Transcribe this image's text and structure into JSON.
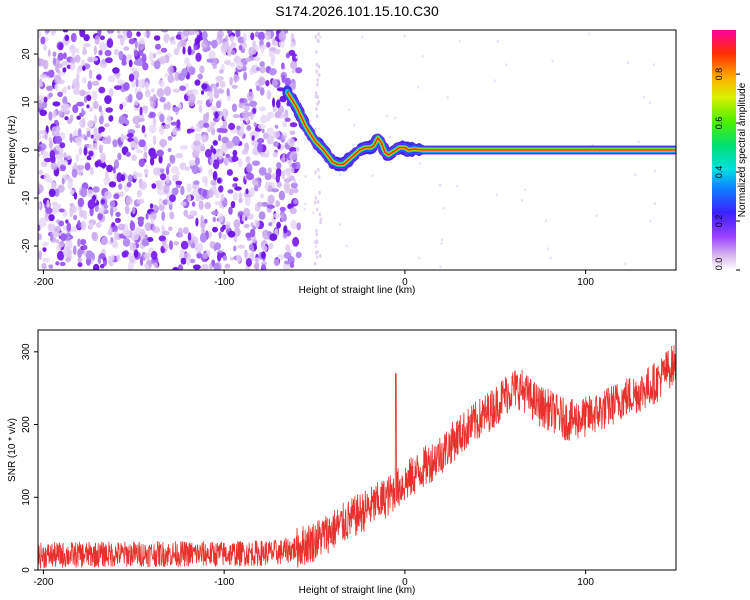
{
  "figure": {
    "title": "S174.2026.101.15.10.C30"
  },
  "chart_data": [
    {
      "type": "heatmap",
      "name": "spectrogram",
      "title": "S174.2026.101.15.10.C30",
      "xlabel": "Height of straight line (km)",
      "ylabel": "Frequency (Hz)",
      "xlim": [
        -203,
        150
      ],
      "ylim": [
        -25,
        25
      ],
      "xticks": [
        -200,
        -100,
        0,
        100
      ],
      "yticks": [
        -20,
        -10,
        0,
        10,
        20
      ],
      "noise_region_km": [
        -203,
        -62
      ],
      "signal_track": {
        "x": [
          -65,
          -60,
          -55,
          -50,
          -45,
          -42,
          -40,
          -37,
          -34,
          -31,
          -28,
          -25,
          -22,
          -19,
          -17,
          -15,
          -13,
          -11,
          -9,
          -7,
          -5,
          -3,
          0,
          2,
          5,
          10,
          20,
          60,
          100,
          150
        ],
        "y": [
          12,
          9,
          5,
          2,
          0,
          -1.5,
          -2.5,
          -3,
          -3,
          -2,
          -1,
          0,
          0.5,
          0.5,
          1,
          2.5,
          1.5,
          -0.5,
          -1,
          -0.5,
          0,
          0.5,
          0.5,
          0,
          0.2,
          0,
          0,
          0,
          0,
          0
        ]
      },
      "colorbar": {
        "label": "Normalized spectral amplitude",
        "min": 0.0,
        "max": 0.98,
        "ticks": [
          0.0,
          0.2,
          0.4,
          0.6,
          0.8
        ]
      }
    },
    {
      "type": "line",
      "name": "snr",
      "xlabel": "Height of straight line (km)",
      "ylabel": "SNR (10 * v/v)",
      "xlim": [
        -203,
        150
      ],
      "ylim": [
        0,
        330
      ],
      "xticks": [
        -200,
        -100,
        0,
        100
      ],
      "yticks": [
        0,
        100,
        200,
        300
      ],
      "color": "#e8302c",
      "trend": {
        "x": [
          -203,
          -150,
          -100,
          -70,
          -60,
          -50,
          -40,
          -30,
          -20,
          -10,
          0,
          10,
          20,
          30,
          40,
          50,
          55,
          60,
          65,
          70,
          75,
          80,
          90,
          100,
          110,
          120,
          130,
          140,
          145,
          150
        ],
        "y": [
          20,
          22,
          22,
          24,
          30,
          40,
          55,
          70,
          85,
          100,
          120,
          140,
          160,
          185,
          205,
          225,
          240,
          250,
          248,
          235,
          225,
          220,
          205,
          210,
          220,
          235,
          245,
          260,
          275,
          285
        ]
      },
      "spike": {
        "x": -5,
        "y": 270
      },
      "noise_amplitude": 18
    }
  ]
}
